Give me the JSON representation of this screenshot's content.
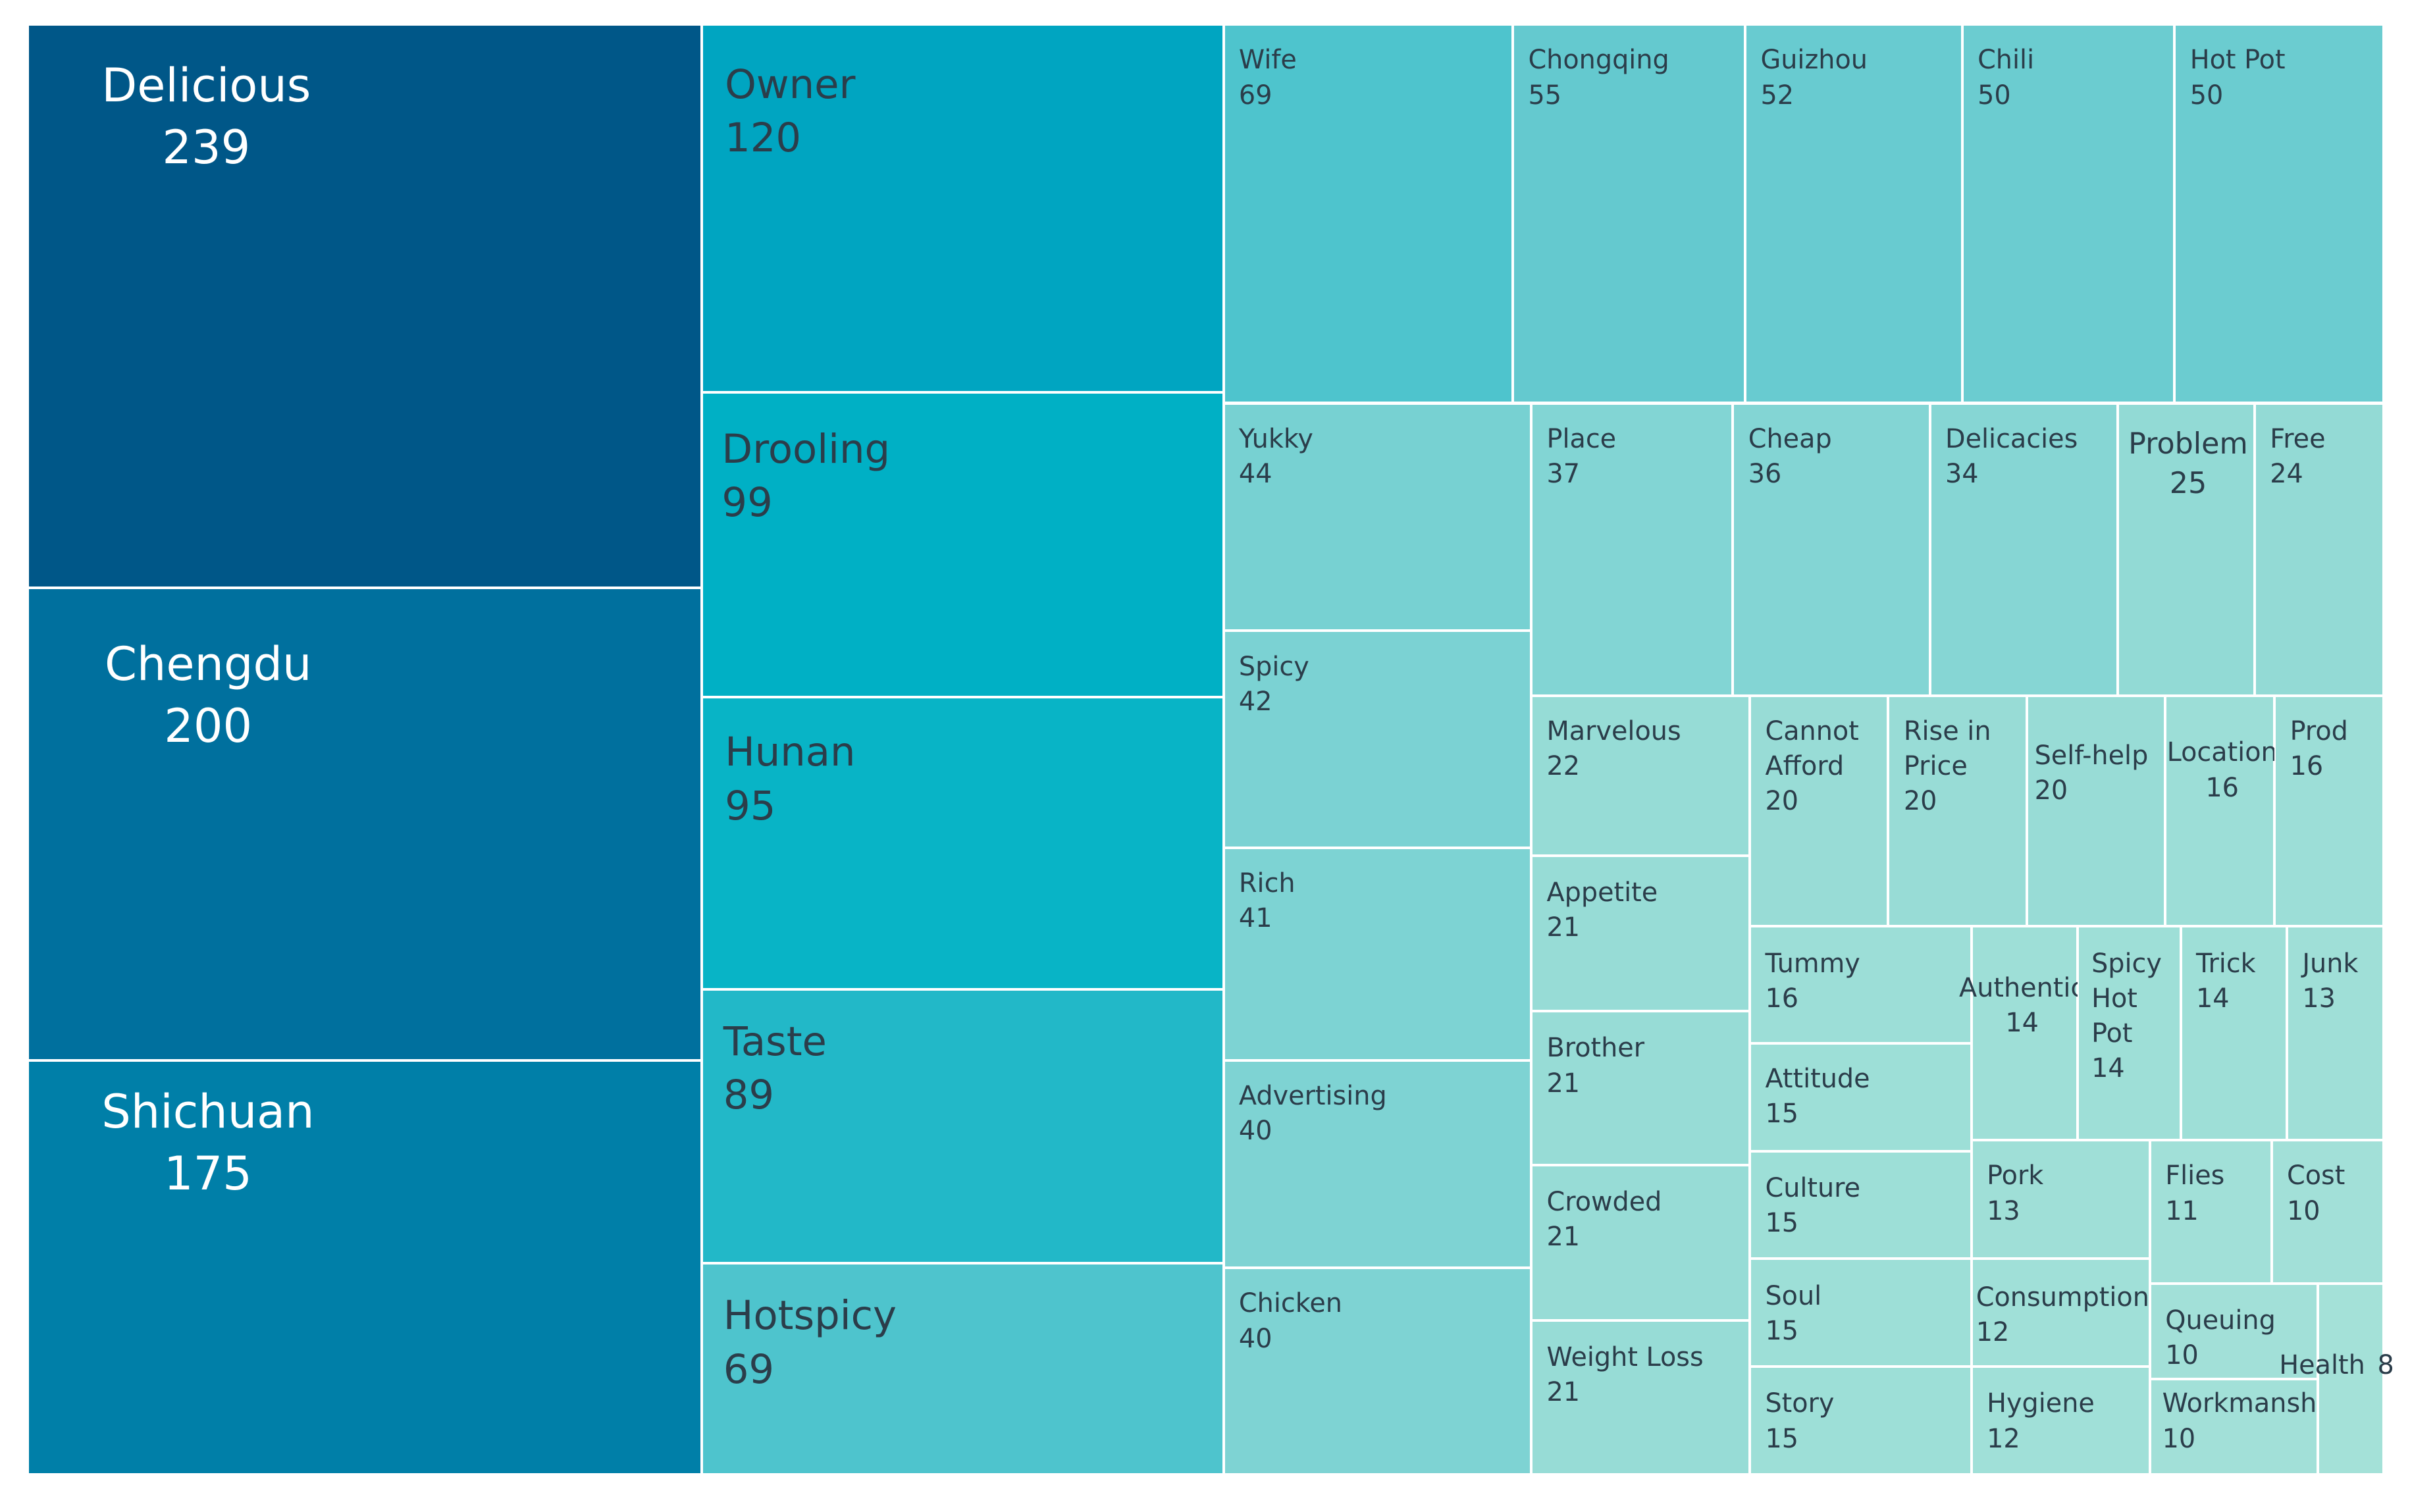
{
  "chart_data": {
    "type": "treemap",
    "title": "",
    "items": [
      {
        "name": "Delicious",
        "value": 239,
        "color": "#005788"
      },
      {
        "name": "Chengdu",
        "value": 200,
        "color": "#00709e"
      },
      {
        "name": "Shichuan",
        "value": 175,
        "color": "#007fa8"
      },
      {
        "name": "Owner",
        "value": 120,
        "color": "#00a5c1"
      },
      {
        "name": "Drooling",
        "value": 99,
        "color": "#00b0c5"
      },
      {
        "name": "Hunan",
        "value": 95,
        "color": "#08b4c6"
      },
      {
        "name": "Taste",
        "value": 89,
        "color": "#22b8c8"
      },
      {
        "name": "Hotspicy",
        "value": 69,
        "color": "#4ec4cd"
      },
      {
        "name": "Wife",
        "value": 69,
        "color": "#4ec4cd"
      },
      {
        "name": "Chongqing",
        "value": 55,
        "color": "#64c9cf"
      },
      {
        "name": "Guizhou",
        "value": 52,
        "color": "#68cbd0"
      },
      {
        "name": "Chili",
        "value": 50,
        "color": "#6bccd0"
      },
      {
        "name": "Hot Pot",
        "value": 50,
        "color": "#6bccd0"
      },
      {
        "name": "Yukky",
        "value": 44,
        "color": "#77d1d2"
      },
      {
        "name": "Spicy",
        "value": 42,
        "color": "#7bd2d3"
      },
      {
        "name": "Rich",
        "value": 41,
        "color": "#7dd3d3"
      },
      {
        "name": "Advertising",
        "value": 40,
        "color": "#7ed3d3"
      },
      {
        "name": "Chicken",
        "value": 40,
        "color": "#7ed3d3"
      },
      {
        "name": "Place",
        "value": 37,
        "color": "#82d5d4"
      },
      {
        "name": "Cheap",
        "value": 36,
        "color": "#83d5d4"
      },
      {
        "name": "Delicacies",
        "value": 34,
        "color": "#86d6d4"
      },
      {
        "name": "Problem",
        "value": 25,
        "color": "#92dad5"
      },
      {
        "name": "Free",
        "value": 24,
        "color": "#93dad5"
      },
      {
        "name": "Marvelous",
        "value": 22,
        "color": "#96dcd6"
      },
      {
        "name": "Appetite",
        "value": 21,
        "color": "#97dcd6"
      },
      {
        "name": "Brother",
        "value": 21,
        "color": "#97dcd6"
      },
      {
        "name": "Crowded",
        "value": 21,
        "color": "#97dcd6"
      },
      {
        "name": "Weight Loss",
        "value": 21,
        "color": "#97dcd6"
      },
      {
        "name": "Cannot\nAfford",
        "value": 20,
        "color": "#98dcd6"
      },
      {
        "name": "Rise in\nPrice",
        "value": 20,
        "color": "#98dcd6"
      },
      {
        "name": "Self-help",
        "value": 20,
        "color": "#98dcd6"
      },
      {
        "name": "Location",
        "value": 16,
        "color": "#9cded7"
      },
      {
        "name": "Prod",
        "value": 16,
        "color": "#9cded7"
      },
      {
        "name": "Tummy",
        "value": 16,
        "color": "#9cded7"
      },
      {
        "name": "Attitude",
        "value": 15,
        "color": "#9ddfd7"
      },
      {
        "name": "Culture",
        "value": 15,
        "color": "#9ddfd7"
      },
      {
        "name": "Soul",
        "value": 15,
        "color": "#9ddfd7"
      },
      {
        "name": "Story",
        "value": 15,
        "color": "#9ddfd7"
      },
      {
        "name": "Authentic",
        "value": 14,
        "color": "#9edfd7"
      },
      {
        "name": "Spicy\nHot\nPot",
        "value": 14,
        "color": "#9edfd7"
      },
      {
        "name": "Trick",
        "value": 14,
        "color": "#9edfd7"
      },
      {
        "name": "Junk",
        "value": 13,
        "color": "#9fdfd7"
      },
      {
        "name": "Pork",
        "value": 13,
        "color": "#9fdfd7"
      },
      {
        "name": "Flies",
        "value": 11,
        "color": "#a1e0d8"
      },
      {
        "name": "Cost",
        "value": 10,
        "color": "#a2e0d8"
      },
      {
        "name": "Consumption",
        "value": 12,
        "color": "#a0e0d8"
      },
      {
        "name": "Hygiene",
        "value": 12,
        "color": "#a0e0d8"
      },
      {
        "name": "Queuing",
        "value": 10,
        "color": "#a2e0d8"
      },
      {
        "name": "Workmanship",
        "value": 10,
        "color": "#a2e0d8"
      },
      {
        "name": "Health",
        "value": 8,
        "color": "#a4e1d8"
      }
    ]
  }
}
